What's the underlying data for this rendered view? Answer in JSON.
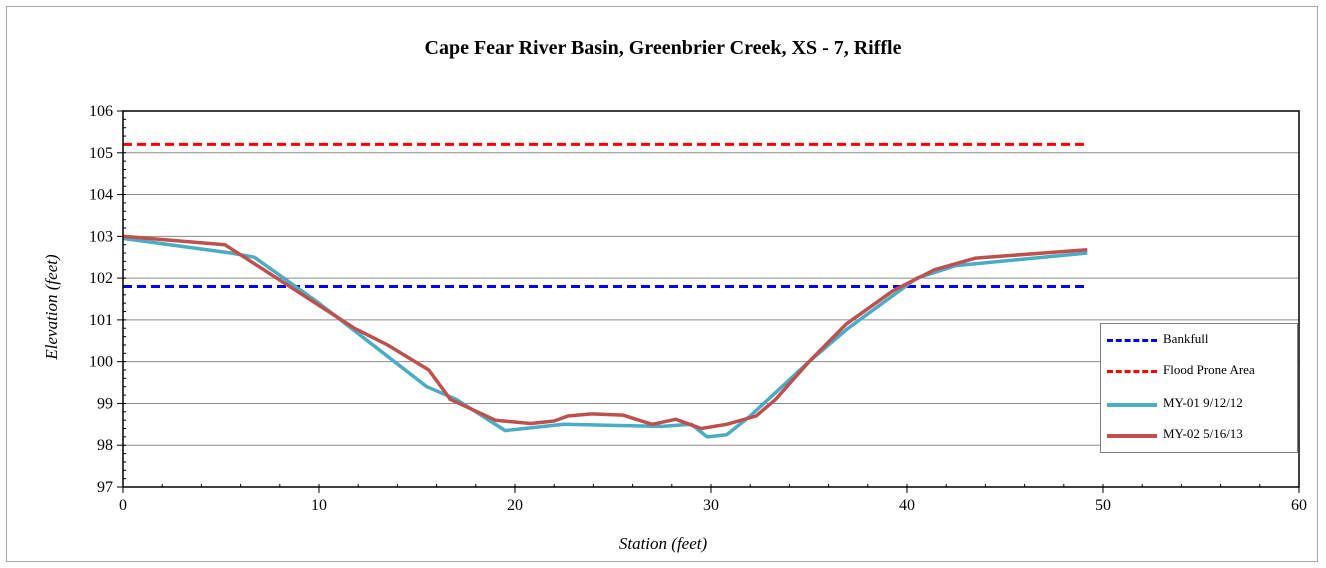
{
  "chart_data": {
    "type": "line",
    "title": "Cape Fear River Basin, Greenbrier Creek, XS - 7, Riffle",
    "xlabel": "Station (feet)",
    "ylabel": "Elevation (feet)",
    "xlim": [
      0,
      60
    ],
    "ylim": [
      97,
      106
    ],
    "x_ticks": [
      0,
      10,
      20,
      30,
      40,
      50,
      60
    ],
    "y_ticks": [
      97,
      98,
      99,
      100,
      101,
      102,
      103,
      104,
      105,
      106
    ],
    "grid": "horizontal",
    "legend_position": "bottom-right",
    "series": [
      {
        "name": "Bankfull",
        "color": "#0000ff",
        "style": "dashed",
        "points": [
          [
            0,
            101.8
          ],
          [
            49.2,
            101.8
          ]
        ]
      },
      {
        "name": "Flood Prone Area",
        "color": "#ff0000",
        "style": "dashed",
        "points": [
          [
            0,
            105.2
          ],
          [
            49.2,
            105.2
          ]
        ]
      },
      {
        "name": "MY-01 9/12/12",
        "color": "#4bacc6",
        "style": "solid",
        "points": [
          [
            0,
            102.95
          ],
          [
            5.5,
            102.6
          ],
          [
            6.7,
            102.5
          ],
          [
            10,
            101.4
          ],
          [
            15.5,
            99.4
          ],
          [
            17,
            99.1
          ],
          [
            19.5,
            98.35
          ],
          [
            22.5,
            98.5
          ],
          [
            27.5,
            98.45
          ],
          [
            29,
            98.5
          ],
          [
            29.8,
            98.2
          ],
          [
            30.8,
            98.25
          ],
          [
            32,
            98.7
          ],
          [
            35,
            100.0
          ],
          [
            37,
            100.8
          ],
          [
            40.5,
            102.0
          ],
          [
            42.5,
            102.3
          ],
          [
            49.2,
            102.6
          ]
        ]
      },
      {
        "name": "MY-02 5/16/13",
        "color": "#c0504d",
        "style": "solid",
        "points": [
          [
            0,
            103.0
          ],
          [
            5.2,
            102.8
          ],
          [
            9.5,
            101.5
          ],
          [
            11.8,
            100.8
          ],
          [
            13.5,
            100.4
          ],
          [
            15.6,
            99.8
          ],
          [
            16.7,
            99.1
          ],
          [
            19,
            98.6
          ],
          [
            20.8,
            98.52
          ],
          [
            22,
            98.58
          ],
          [
            22.7,
            98.7
          ],
          [
            23.9,
            98.75
          ],
          [
            25.5,
            98.72
          ],
          [
            27,
            98.5
          ],
          [
            28.2,
            98.62
          ],
          [
            29.5,
            98.4
          ],
          [
            30.8,
            98.5
          ],
          [
            32.3,
            98.7
          ],
          [
            33.3,
            99.1
          ],
          [
            35,
            100.0
          ],
          [
            36.9,
            100.9
          ],
          [
            39.3,
            101.7
          ],
          [
            41.4,
            102.2
          ],
          [
            43.5,
            102.48
          ],
          [
            49.2,
            102.68
          ]
        ]
      }
    ]
  }
}
